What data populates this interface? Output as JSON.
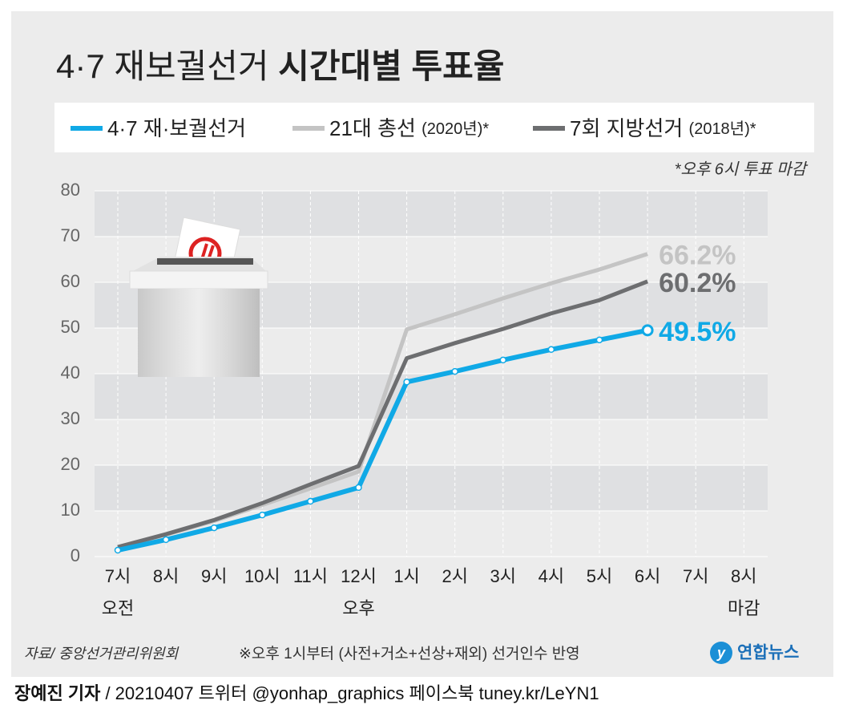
{
  "chart_data": {
    "type": "line",
    "title": "4·7 재보궐선거",
    "title_emphasis": "시간대별 투표율",
    "note": "*오후 6시 투표 마감",
    "categories": [
      "7시",
      "8시",
      "9시",
      "10시",
      "11시",
      "12시",
      "1시",
      "2시",
      "3시",
      "4시",
      "5시",
      "6시",
      "7시",
      "8시"
    ],
    "categories_line2": [
      "오전",
      null,
      null,
      null,
      null,
      "오후",
      null,
      null,
      null,
      null,
      null,
      null,
      null,
      "마감"
    ],
    "ylim": [
      0,
      80
    ],
    "yticks": [
      0,
      10,
      20,
      30,
      40,
      50,
      60,
      70,
      80
    ],
    "grid": true,
    "series": [
      {
        "name": "21대 총선",
        "name_note": "(2020년)*",
        "color": "#c4c4c4",
        "values": [
          2.0,
          4.8,
          7.8,
          11.3,
          14.9,
          18.6,
          49.7,
          53.0,
          56.5,
          59.8,
          62.8,
          66.2,
          null,
          null
        ],
        "value_labels": [
          null,
          null,
          null,
          null,
          null,
          null,
          null,
          null,
          null,
          null,
          null,
          "66.2%",
          null,
          null
        ]
      },
      {
        "name": "7회 지방선거",
        "name_note": "(2018년)*",
        "color": "#6d6e70",
        "values": [
          2.1,
          4.9,
          8.0,
          11.7,
          15.8,
          19.8,
          43.4,
          46.7,
          49.8,
          53.2,
          56.1,
          60.2,
          null,
          null
        ],
        "value_labels": [
          null,
          null,
          null,
          null,
          null,
          null,
          null,
          null,
          null,
          null,
          null,
          "60.2%",
          null,
          null
        ]
      },
      {
        "name": "4·7 재·보궐선거",
        "color": "#10a9e6",
        "values": [
          1.4,
          3.7,
          6.3,
          9.1,
          12.1,
          15.1,
          38.2,
          40.5,
          43.0,
          45.3,
          47.4,
          49.5,
          null,
          null
        ],
        "value_labels": [
          null,
          null,
          null,
          null,
          null,
          null,
          null,
          null,
          null,
          null,
          null,
          "49.5%",
          null,
          null
        ]
      }
    ],
    "source": "자료/ 중앙선거관리위원회",
    "footnote": "※오후 1시부터 (사전+거소+선상+재외) 선거인수 반영",
    "logo": "연합뉴스",
    "credit_author": "장예진 기자",
    "credit_rest": "/ 20210407 트위터 @yonhap_graphics  페이스북 tuney.kr/LeYN1"
  }
}
